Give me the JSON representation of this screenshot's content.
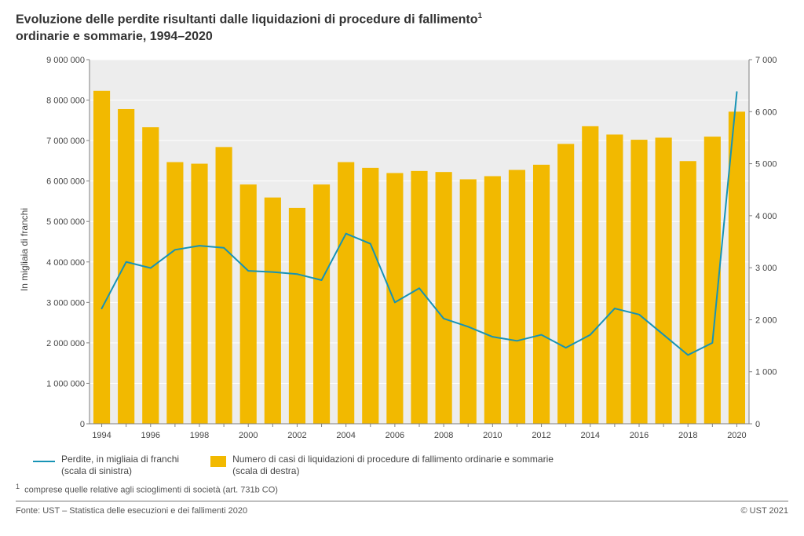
{
  "title_line1": "Evoluzione delle perdite risultanti dalle liquidazioni di procedure di fallimento",
  "title_sup": "1",
  "title_line2": "ordinarie e sommarie, 1994–2020",
  "y_axis_left_label": "In migliaia di franchi",
  "legend": {
    "line_label": "Perdite, in migliaia di franchi\n(scala di sinistra)",
    "bar_label": "Numero di casi di liquidazioni di procedure di fallimento ordinarie e sommarie\n(scala di destra)"
  },
  "footnote": "comprese quelle relative agli scioglimenti di società (art. 731b CO)",
  "footnote_marker": "1",
  "source": "Fonte: UST – Statistica delle esecuzioni e dei fallimenti 2020",
  "copyright": "© UST 2021",
  "chart": {
    "type": "bar+line",
    "background_color": "#ffffff",
    "plot_background_color": "#ededed",
    "grid_color": "#ffffff",
    "axis_line_color": "#808080",
    "bar_color": "#f2b900",
    "line_color": "#1793b5",
    "line_width": 2,
    "bar_width_ratio": 0.68,
    "years": [
      1994,
      1995,
      1996,
      1997,
      1998,
      1999,
      2000,
      2001,
      2002,
      2003,
      2004,
      2005,
      2006,
      2007,
      2008,
      2009,
      2010,
      2011,
      2012,
      2013,
      2014,
      2015,
      2016,
      2017,
      2018,
      2019,
      2020
    ],
    "x_tick_step": 2,
    "left_axis": {
      "min": 0,
      "max": 9000000,
      "step": 1000000,
      "tick_labels": [
        "0",
        "1 000 000",
        "2 000 000",
        "3 000 000",
        "4 000 000",
        "5 000 000",
        "6 000 000",
        "7 000 000",
        "8 000 000",
        "9 000 000"
      ]
    },
    "right_axis": {
      "min": 0,
      "max": 7000,
      "step": 1000,
      "tick_labels": [
        "0",
        "1 000",
        "2 000",
        "3 000",
        "4 000",
        "5 000",
        "6 000",
        "7 000"
      ]
    },
    "line_values_left": [
      2850000,
      4000000,
      3850000,
      4300000,
      4400000,
      4350000,
      3780000,
      3750000,
      3700000,
      3550000,
      4700000,
      4450000,
      3000000,
      3350000,
      2600000,
      2400000,
      2150000,
      2050000,
      2200000,
      1880000,
      2200000,
      2850000,
      2700000,
      2200000,
      1700000,
      2000000,
      8200000
    ],
    "bar_values_right": [
      6400,
      6050,
      5700,
      5030,
      5000,
      5320,
      4600,
      4350,
      4150,
      4600,
      5030,
      4920,
      4820,
      4860,
      4840,
      4700,
      4760,
      4880,
      4980,
      5380,
      5720,
      5560,
      5460,
      5500,
      5050,
      5520,
      6000
    ],
    "tick_fontsize": 11,
    "label_fontsize": 12,
    "title_fontsize": 16
  }
}
